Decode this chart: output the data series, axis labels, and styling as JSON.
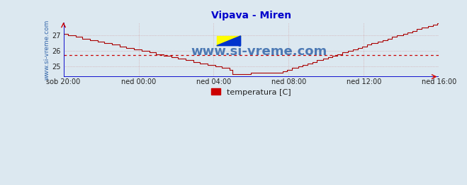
{
  "title": "Vipava - Miren",
  "title_color": "#0000cc",
  "bg_color": "#dce8f0",
  "plot_bg_color": "#dce8f0",
  "line_color": "#aa0000",
  "axis_color": "#0000cc",
  "grid_color": "#cc8888",
  "avg_line_color": "#cc0000",
  "avg_line_value": 25.73,
  "ylim": [
    24.35,
    27.85
  ],
  "yticks": [
    25,
    26,
    27
  ],
  "xtick_labels": [
    "sob 20:00",
    "ned 00:00",
    "ned 04:00",
    "ned 08:00",
    "ned 12:00",
    "ned 16:00"
  ],
  "watermark_text": "www.si-vreme.com",
  "watermark_color": "#3366aa",
  "legend_label": "temperatura [C]",
  "legend_color": "#cc0000",
  "ylabel_text": "www.si-vreme.com",
  "ylabel_color": "#3366aa"
}
